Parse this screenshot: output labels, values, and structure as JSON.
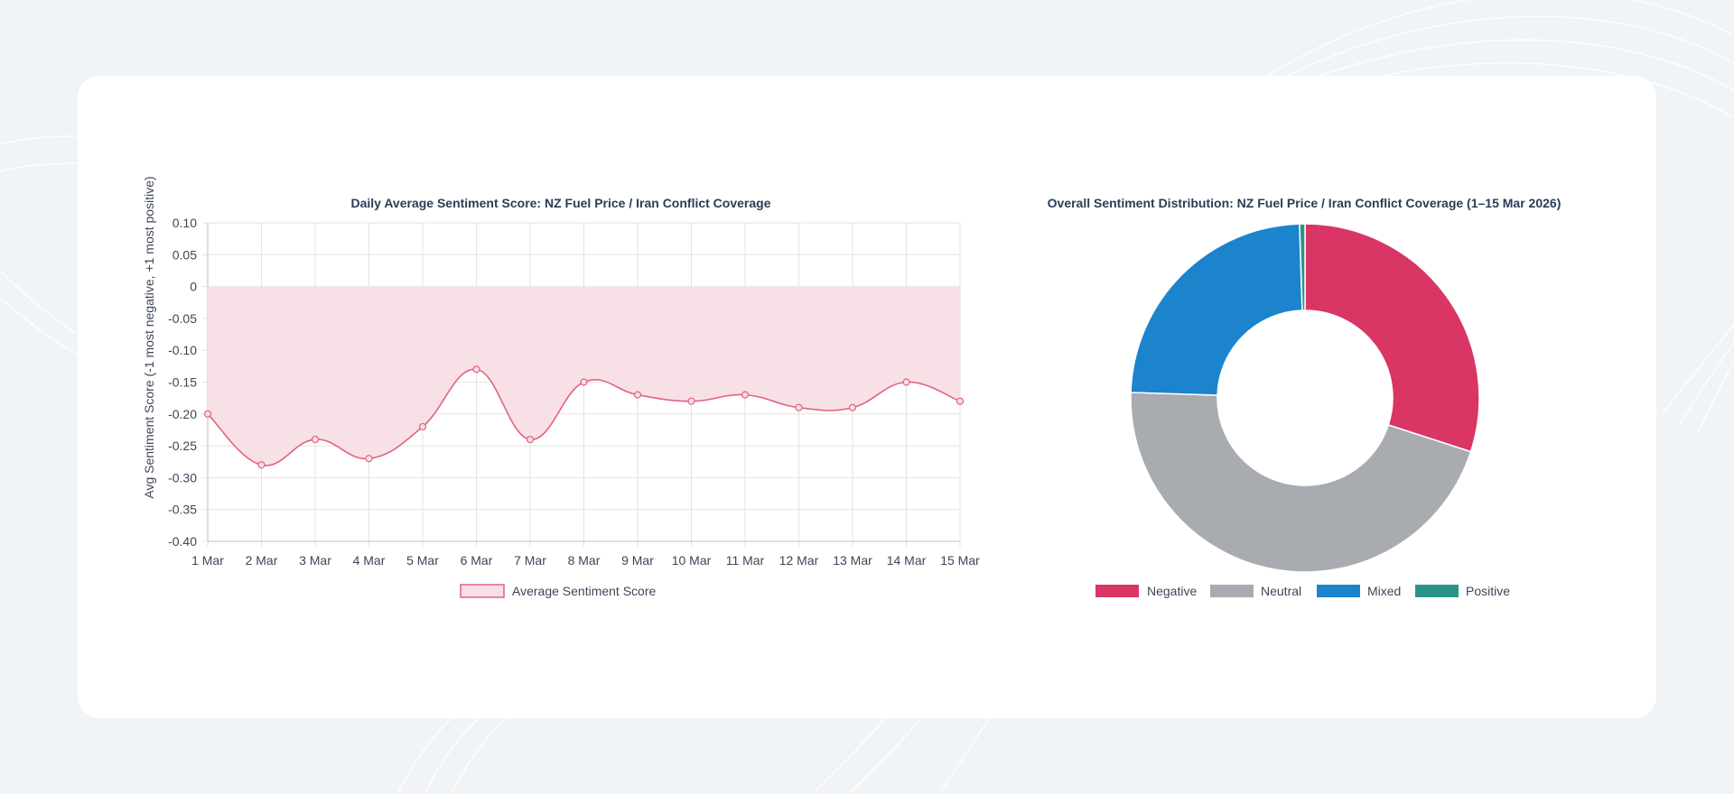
{
  "chart_data": [
    {
      "type": "line",
      "title": "Daily Average Sentiment Score: NZ Fuel Price / Iran Conflict Coverage",
      "xlabel": "",
      "ylabel": "Avg Sentiment Score (-1 most negative, +1 most positive)",
      "categories": [
        "1 Mar",
        "2 Mar",
        "3 Mar",
        "4 Mar",
        "5 Mar",
        "6 Mar",
        "7 Mar",
        "8 Mar",
        "9 Mar",
        "10 Mar",
        "11 Mar",
        "12 Mar",
        "13 Mar",
        "14 Mar",
        "15 Mar"
      ],
      "series": [
        {
          "name": "Average Sentiment Score",
          "values": [
            -0.2,
            -0.28,
            -0.24,
            -0.27,
            -0.22,
            -0.13,
            -0.24,
            -0.15,
            -0.17,
            -0.18,
            -0.17,
            -0.19,
            -0.19,
            -0.15,
            -0.18
          ]
        }
      ],
      "ylim": [
        -0.4,
        0.1
      ],
      "yticks": [
        "0.10",
        "0.05",
        "0",
        "-0.05",
        "-0.10",
        "-0.15",
        "-0.20",
        "-0.25",
        "-0.30",
        "-0.35",
        "-0.40"
      ],
      "grid": true,
      "fill_to_zero": true,
      "legend_position": "bottom",
      "colors": {
        "line": "#e2627f",
        "fill": "#f7dfe5",
        "grid": "#e3e3e3",
        "axis": "#bfbfbf"
      }
    },
    {
      "type": "pie",
      "variant": "doughnut",
      "title": "Overall Sentiment Distribution: NZ Fuel Price / Iran Conflict Coverage (1–15 Mar 2026)",
      "labels": [
        "Negative",
        "Neutral",
        "Mixed",
        "Positive"
      ],
      "values": [
        30.0,
        45.5,
        24.0,
        0.5
      ],
      "colors": [
        "#d93565",
        "#a8acb1",
        "#1b84cc",
        "#2a948a"
      ],
      "legend_position": "bottom"
    }
  ],
  "colors": {
    "page_background": "#f0f4f7",
    "card_background": "#ffffff"
  }
}
